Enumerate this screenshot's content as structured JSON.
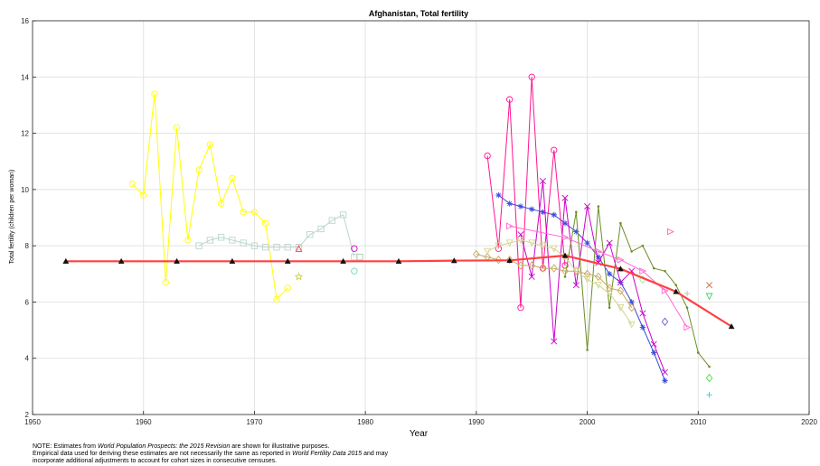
{
  "chart_data": {
    "type": "line",
    "title": "Afghanistan, Total fertility",
    "xlabel": "Year",
    "ylabel": "Total fertility (children per woman)",
    "xlim": [
      1950,
      2020
    ],
    "ylim": [
      2,
      16
    ],
    "xticks": [
      1950,
      1960,
      1970,
      1980,
      1990,
      2000,
      2010,
      2020
    ],
    "yticks": [
      2,
      4,
      6,
      8,
      10,
      12,
      14,
      16
    ],
    "grid": true,
    "legend": "none",
    "series": [
      {
        "color": "#ffff00",
        "marker": "circle",
        "line": true,
        "points": [
          [
            1959,
            10.2
          ],
          [
            1960,
            9.8
          ],
          [
            1961,
            13.4
          ],
          [
            1962,
            6.7
          ],
          [
            1963,
            12.2
          ],
          [
            1964,
            8.2
          ],
          [
            1965,
            10.7
          ],
          [
            1966,
            11.6
          ],
          [
            1967,
            9.5
          ],
          [
            1968,
            10.4
          ],
          [
            1969,
            9.2
          ],
          [
            1970,
            9.2
          ],
          [
            1971,
            8.8
          ],
          [
            1972,
            6.1
          ],
          [
            1973,
            6.5
          ]
        ]
      },
      {
        "color": "#bcd4d0",
        "marker": "square",
        "line": true,
        "points": [
          [
            1965,
            8.0
          ],
          [
            1966,
            8.2
          ],
          [
            1967,
            8.3
          ],
          [
            1968,
            8.2
          ],
          [
            1969,
            8.1
          ],
          [
            1970,
            8.0
          ],
          [
            1971,
            7.95
          ],
          [
            1972,
            7.95
          ],
          [
            1973,
            7.95
          ],
          [
            1974,
            7.95
          ],
          [
            1975,
            8.4
          ],
          [
            1976,
            8.6
          ],
          [
            1977,
            8.9
          ],
          [
            1978,
            9.1
          ],
          [
            1979,
            7.6
          ]
        ]
      },
      {
        "color": "#ff1493",
        "marker": "circle",
        "line": true,
        "points": [
          [
            1991,
            11.2
          ],
          [
            1992,
            7.9
          ],
          [
            1993,
            13.2
          ],
          [
            1994,
            5.8
          ],
          [
            1995,
            14.0
          ],
          [
            1996,
            7.2
          ],
          [
            1997,
            11.4
          ],
          [
            1998,
            7.3
          ]
        ]
      },
      {
        "color": "#3b4bd8",
        "marker": "asterisk",
        "line": true,
        "points": [
          [
            1992,
            9.8
          ],
          [
            1993,
            9.5
          ],
          [
            1994,
            9.4
          ],
          [
            1995,
            9.3
          ],
          [
            1996,
            9.2
          ],
          [
            1997,
            9.1
          ],
          [
            1998,
            8.8
          ],
          [
            1999,
            8.5
          ],
          [
            2000,
            8.1
          ],
          [
            2001,
            7.6
          ],
          [
            2002,
            7.0
          ],
          [
            2003,
            6.7
          ],
          [
            2004,
            6.0
          ],
          [
            2005,
            5.1
          ],
          [
            2006,
            4.2
          ],
          [
            2007,
            3.2
          ]
        ]
      },
      {
        "color": "#cc00cc",
        "marker": "x",
        "line": true,
        "points": [
          [
            1994,
            8.4
          ],
          [
            1995,
            6.9
          ],
          [
            1996,
            10.3
          ],
          [
            1997,
            4.6
          ],
          [
            1998,
            9.7
          ],
          [
            1999,
            6.6
          ],
          [
            2000,
            9.4
          ],
          [
            2001,
            7.4
          ],
          [
            2002,
            8.1
          ],
          [
            2003,
            6.7
          ],
          [
            2004,
            7.1
          ],
          [
            2005,
            5.6
          ],
          [
            2006,
            4.5
          ],
          [
            2007,
            3.5
          ]
        ]
      },
      {
        "color": "#6b8e23",
        "marker": "dot",
        "line": true,
        "points": [
          [
            1998,
            6.9
          ],
          [
            1999,
            9.2
          ],
          [
            2000,
            4.3
          ],
          [
            2001,
            9.4
          ],
          [
            2002,
            5.8
          ],
          [
            2003,
            8.8
          ],
          [
            2004,
            7.8
          ],
          [
            2005,
            8.0
          ],
          [
            2006,
            7.2
          ],
          [
            2007,
            7.1
          ],
          [
            2008,
            6.6
          ],
          [
            2009,
            5.8
          ],
          [
            2010,
            4.2
          ],
          [
            2011,
            3.7
          ]
        ]
      },
      {
        "color": "#c8a85a",
        "marker": "diamond",
        "line": true,
        "points": [
          [
            1990,
            7.7
          ],
          [
            1991,
            7.6
          ],
          [
            1992,
            7.5
          ],
          [
            1993,
            7.5
          ],
          [
            1994,
            7.3
          ],
          [
            1995,
            7.3
          ],
          [
            1996,
            7.2
          ],
          [
            1997,
            7.2
          ],
          [
            1998,
            7.1
          ],
          [
            1999,
            7.1
          ],
          [
            2000,
            7.0
          ],
          [
            2001,
            6.9
          ],
          [
            2002,
            6.5
          ],
          [
            2003,
            6.4
          ],
          [
            2004,
            5.8
          ]
        ]
      },
      {
        "color": "#d4d490",
        "marker": "triangle-down",
        "line": true,
        "points": [
          [
            1991,
            7.8
          ],
          [
            1992,
            8.0
          ],
          [
            1993,
            8.1
          ],
          [
            1994,
            8.2
          ],
          [
            1995,
            8.1
          ],
          [
            1996,
            8.0
          ],
          [
            1997,
            7.9
          ],
          [
            1998,
            7.6
          ],
          [
            1999,
            7.1
          ],
          [
            2000,
            6.8
          ],
          [
            2001,
            6.6
          ],
          [
            2002,
            6.3
          ],
          [
            2003,
            5.8
          ],
          [
            2004,
            5.2
          ]
        ]
      },
      {
        "color": "#ff69d4",
        "marker": "triangle-right",
        "line": true,
        "points": [
          [
            1993,
            8.7
          ],
          [
            1998,
            8.3
          ],
          [
            2001,
            7.8
          ],
          [
            2003,
            7.5
          ],
          [
            2005,
            7.1
          ],
          [
            2007,
            6.4
          ],
          [
            2009,
            5.1
          ]
        ]
      },
      {
        "color": "#ff4040",
        "marker": "triangle-up",
        "line": false,
        "points": [
          [
            1974,
            7.9
          ]
        ]
      },
      {
        "color": "#cccc44",
        "marker": "star",
        "line": false,
        "points": [
          [
            1974,
            6.9
          ]
        ]
      },
      {
        "color": "#cc00cc",
        "marker": "circle",
        "line": false,
        "points": [
          [
            1979,
            7.9
          ]
        ]
      },
      {
        "color": "#66ddaa",
        "marker": "circle",
        "line": false,
        "points": [
          [
            1979,
            7.1
          ]
        ]
      },
      {
        "color": "#aaccaa",
        "marker": "square",
        "line": false,
        "points": [
          [
            1979.5,
            7.6
          ]
        ]
      },
      {
        "color": "#ff69b4",
        "marker": "triangle-right",
        "line": false,
        "points": [
          [
            2007.5,
            8.5
          ]
        ]
      },
      {
        "color": "#cc6633",
        "marker": "x",
        "line": false,
        "points": [
          [
            2011,
            6.6
          ]
        ]
      },
      {
        "color": "#44cc66",
        "marker": "triangle-down",
        "line": false,
        "points": [
          [
            2011,
            6.2
          ]
        ]
      },
      {
        "color": "#44dd44",
        "marker": "diamond",
        "line": false,
        "points": [
          [
            2011,
            3.3
          ]
        ]
      },
      {
        "color": "#40c0e0",
        "marker": "plus",
        "line": false,
        "points": [
          [
            2011,
            2.7
          ]
        ]
      },
      {
        "color": "#6060c0",
        "marker": "diamond",
        "line": false,
        "points": [
          [
            2007,
            5.3
          ]
        ]
      },
      {
        "color": "#bbbbbb",
        "marker": "plus",
        "line": false,
        "points": [
          [
            2009,
            6.3
          ]
        ]
      },
      {
        "color": "#aaddaa",
        "marker": "diamond",
        "line": false,
        "points": [
          [
            2005,
            6.8
          ]
        ]
      }
    ],
    "estimates": {
      "color": "#ff4040",
      "points": [
        [
          1953,
          7.45
        ],
        [
          1958,
          7.45
        ],
        [
          1963,
          7.45
        ],
        [
          1968,
          7.45
        ],
        [
          1973,
          7.45
        ],
        [
          1978,
          7.45
        ],
        [
          1983,
          7.45
        ],
        [
          1988,
          7.47
        ],
        [
          1993,
          7.48
        ],
        [
          1998,
          7.65
        ],
        [
          2003,
          7.18
        ],
        [
          2008,
          6.37
        ],
        [
          2013,
          5.13
        ]
      ]
    }
  },
  "note": {
    "line1_prefix": "NOTE: Estimates from ",
    "line1_italic": "World Population Prospects: the 2015 Revision",
    "line1_suffix": " are shown for illustrative purposes.",
    "line2_prefix": "Empirical data used for deriving these estimates are not necessarily the same as reported in ",
    "line2_italic": "World Fertility Data 2015",
    "line2_suffix": " and may",
    "line3": "incorporate additional adjustments to account for cohort sizes in consecutive censuses."
  }
}
